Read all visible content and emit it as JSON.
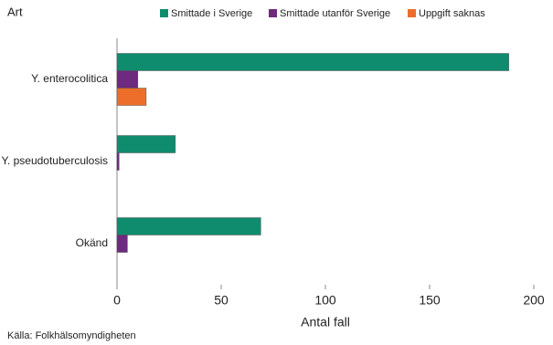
{
  "chart_data": {
    "type": "hbar",
    "title": "Art",
    "xlabel": "Antal fall",
    "source": "Källa: Folkhälsomyndigheten",
    "categories": [
      "Y. enterocolitica",
      "Y. pseudotuberculosis",
      "Okänd"
    ],
    "series": [
      {
        "name": "Smittade i Sverige",
        "color": "#0f8c6e",
        "values": [
          188,
          28,
          69
        ]
      },
      {
        "name": "Smittade utanför Sverige",
        "color": "#6d2a7e",
        "values": [
          10,
          1,
          5
        ]
      },
      {
        "name": "Uppgift saknas",
        "color": "#ec6e2a",
        "values": [
          14,
          0,
          0
        ]
      }
    ],
    "xlim": [
      0,
      200
    ],
    "xticks": [
      0,
      50,
      100,
      150,
      200
    ],
    "legend": "top"
  }
}
